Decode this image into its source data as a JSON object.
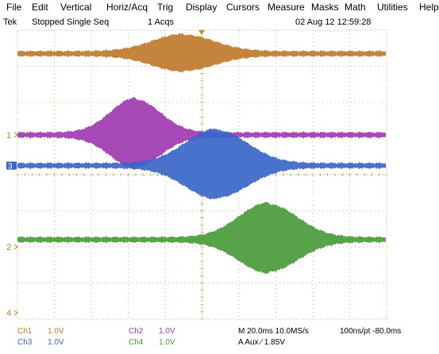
{
  "menu": [
    "File",
    "Edit",
    "Vertical",
    "Horiz/Acq",
    "Trig",
    "Display",
    "Cursors",
    "Measure",
    "Masks",
    "Math",
    "Utilities",
    "Help"
  ],
  "status": {
    "brand": "Tek",
    "state": "Stopped Single Seq",
    "acqs": "1 Acqs",
    "datetime": "02 Aug 12 12:59:28"
  },
  "markers": {
    "ch1": "1",
    "ch2": "2",
    "ch3": "3",
    "ch4": "4"
  },
  "readout": {
    "ch1_label": "Ch1",
    "ch1_scale": "1.0V",
    "ch2_label": "Ch2",
    "ch2_scale": "1.0V",
    "ch3_label": "Ch3",
    "ch3_scale": "1.0V",
    "ch4_label": "Ch4",
    "ch4_scale": "1.0V",
    "horizontal": "M 20.0ms 10.0MS/s",
    "record": "100ns/pt -80.0ms",
    "trigger": "A  Aux  ∕  1.85V"
  },
  "colors": {
    "ch1": "#c07a2c",
    "ch2": "#a03ab0",
    "ch3": "#3a66c8",
    "ch4": "#4a9a3a",
    "grid": "#b8a060",
    "trigger": "#d4851a",
    "text": "#000000"
  },
  "channels": [
    {
      "id": "ch1",
      "center_div": 0.65,
      "peak_div": 4.5,
      "width": 2.0,
      "peak_amp": 0.24
    },
    {
      "id": "ch2",
      "center_div": 2.9,
      "peak_div": 3.2,
      "width": 1.6,
      "peak_amp": 0.48
    },
    {
      "id": "ch3",
      "center_div": 3.75,
      "peak_div": 5.4,
      "width": 2.0,
      "peak_amp": 0.48
    },
    {
      "id": "ch4",
      "center_div": 5.8,
      "peak_div": 6.8,
      "width": 1.9,
      "peak_amp": 0.48
    }
  ]
}
